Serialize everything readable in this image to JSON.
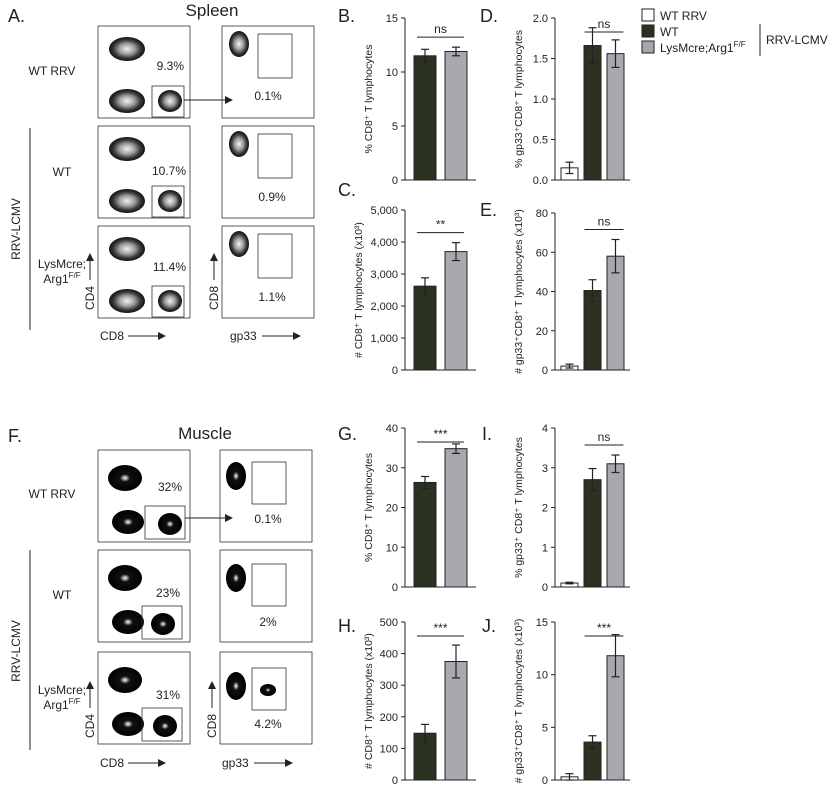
{
  "figure": {
    "panel_letters": {
      "A": "A.",
      "B": "B.",
      "C": "C.",
      "D": "D.",
      "E": "E.",
      "F": "F.",
      "G": "G.",
      "H": "H.",
      "I": "I.",
      "J": "J."
    },
    "spleen_title": "Spleen",
    "muscle_title": "Muscle",
    "row_labels": {
      "wt_rrv": "WT RRV",
      "wt": "WT",
      "lysmcre_line1": "LysMcre;",
      "lysmcre_line2": "Arg1",
      "lysmcre_sup": "F/F",
      "group": "RRV-LCMV"
    },
    "flow_axes": {
      "cd4": "CD4",
      "cd8": "CD8",
      "gp33": "gp33"
    },
    "spleen_percentages": {
      "cd8_wt_rrv": "9.3%",
      "gp33_wt_rrv": "0.1%",
      "cd8_wt": "10.7%",
      "gp33_wt": "0.9%",
      "cd8_lys": "11.4%",
      "gp33_lys": "1.1%"
    },
    "muscle_percentages": {
      "cd8_wt_rrv": "32%",
      "gp33_wt_rrv": "0.1%",
      "cd8_wt": "23%",
      "gp33_wt": "2%",
      "cd8_lys": "31%",
      "gp33_lys": "4.2%"
    }
  },
  "legend": {
    "items": [
      {
        "label": "WT RRV",
        "sup": "",
        "color": "#ffffff"
      },
      {
        "label": "WT",
        "sup": "",
        "color": "#2b3320"
      },
      {
        "label": "LysMcre;Arg1",
        "sup": "F/F",
        "color": "#a8a8ae"
      }
    ],
    "bracket_label": "RRV-LCMV"
  },
  "colors": {
    "wt_rrv": "#ffffff",
    "wt": "#2b3320",
    "lysmcre_arg1": "#a8a8ae",
    "axis": "#222222"
  },
  "chart_data": [
    {
      "id": "B",
      "type": "bar",
      "ylabel": "% CD8⁺ T lymphocytes",
      "categories": [
        "WT",
        "LysMcre;Arg1F/F"
      ],
      "values": [
        11.5,
        11.9
      ],
      "errors": [
        0.6,
        0.4
      ],
      "yticks": [
        0,
        5,
        10,
        15
      ],
      "ytick_labels": [
        "0",
        "5",
        "10",
        "15"
      ],
      "ylim": [
        0,
        15
      ],
      "significance": "ns"
    },
    {
      "id": "C",
      "type": "bar",
      "ylabel": "# CD8⁺ T lymphocytes (x10³)",
      "categories": [
        "WT",
        "LysMcre;Arg1F/F"
      ],
      "values": [
        2620,
        3700
      ],
      "errors": [
        260,
        280
      ],
      "yticks": [
        0,
        1000,
        2000,
        3000,
        4000,
        5000
      ],
      "ytick_labels": [
        "0",
        "1,000",
        "2,000",
        "3,000",
        "4,000",
        "5,000"
      ],
      "ylim": [
        0,
        5000
      ],
      "significance": "**"
    },
    {
      "id": "D",
      "type": "bar",
      "ylabel": "% gp33⁺CD8⁺ T lymphocytes",
      "categories": [
        "WT RRV",
        "WT",
        "LysMcre;Arg1F/F"
      ],
      "values": [
        0.15,
        1.66,
        1.56
      ],
      "errors": [
        0.07,
        0.22,
        0.17
      ],
      "yticks": [
        0,
        0.5,
        1,
        1.5,
        2
      ],
      "ytick_labels": [
        "0.0",
        "0.5",
        "1.0",
        "1.5",
        "2.0"
      ],
      "ylim": [
        0,
        2.0
      ],
      "significance": "ns"
    },
    {
      "id": "E",
      "type": "bar",
      "ylabel": "# gp33⁺CD8⁺ T lymphocytes (x10³)",
      "categories": [
        "WT RRV",
        "WT",
        "LysMcre;Arg1F/F"
      ],
      "values": [
        2,
        40.5,
        58
      ],
      "errors": [
        1,
        5.5,
        8.5
      ],
      "yticks": [
        0,
        20,
        40,
        60,
        80
      ],
      "ytick_labels": [
        "0",
        "20",
        "40",
        "60",
        "80"
      ],
      "ylim": [
        0,
        80
      ],
      "significance": "ns"
    },
    {
      "id": "G",
      "type": "bar",
      "ylabel": "% CD8⁺ T lymphocytes",
      "categories": [
        "WT",
        "LysMcre;Arg1F/F"
      ],
      "values": [
        26.3,
        34.8
      ],
      "errors": [
        1.5,
        1.2
      ],
      "yticks": [
        0,
        10,
        20,
        30,
        40
      ],
      "ytick_labels": [
        "0",
        "10",
        "20",
        "30",
        "40"
      ],
      "ylim": [
        0,
        40
      ],
      "significance": "***"
    },
    {
      "id": "H",
      "type": "bar",
      "ylabel": "# CD8⁺ T lymphocytes (x10³)",
      "categories": [
        "WT",
        "LysMcre;Arg1F/F"
      ],
      "values": [
        148,
        375
      ],
      "errors": [
        28,
        52
      ],
      "yticks": [
        0,
        100,
        200,
        300,
        400,
        500
      ],
      "ytick_labels": [
        "0",
        "100",
        "200",
        "300",
        "400",
        "500"
      ],
      "ylim": [
        0,
        500
      ],
      "significance": "***"
    },
    {
      "id": "I",
      "type": "bar",
      "ylabel": "% gp33⁺ CD8⁺ T lymphocytes",
      "categories": [
        "WT RRV",
        "WT",
        "LysMcre;Arg1F/F"
      ],
      "values": [
        0.1,
        2.7,
        3.1
      ],
      "errors": [
        0.02,
        0.28,
        0.22
      ],
      "yticks": [
        0,
        1,
        2,
        3,
        4
      ],
      "ytick_labels": [
        "0",
        "1",
        "2",
        "3",
        "4"
      ],
      "ylim": [
        0,
        4
      ],
      "significance": "ns"
    },
    {
      "id": "J",
      "type": "bar",
      "ylabel": "# gp33⁺CD8⁺ T lymphocytes (x10³)",
      "categories": [
        "WT RRV",
        "WT",
        "LysMcre;Arg1F/F"
      ],
      "values": [
        0.3,
        3.6,
        11.8
      ],
      "errors": [
        0.3,
        0.6,
        2.0
      ],
      "yticks": [
        0,
        5,
        10,
        15
      ],
      "ytick_labels": [
        "0",
        "5",
        "10",
        "15"
      ],
      "ylim": [
        0,
        15
      ],
      "significance": "***"
    }
  ]
}
